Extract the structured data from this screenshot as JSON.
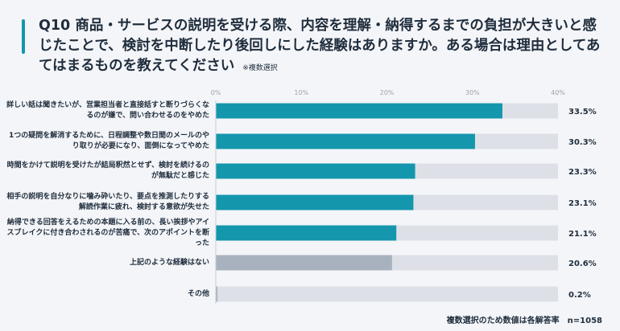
{
  "title": "Q10 商品・サービスの説明を受ける際、内容を理解・納得するまでの負担が大きいと感じたことで、検討を中断したり後回しにした経験はありますか。ある場合は理由としてあてはまるものを教えてください",
  "title_note": "※複数選択",
  "footnote": "複数選択のため数値は各解答率",
  "sample_size": "n=1058",
  "chart_data": {
    "type": "bar",
    "orientation": "horizontal",
    "categories": [
      "詳しい話は聞きたいが、営業担当者と直接話すと断りづらくなるのが嫌で、問い合わせるのをやめた",
      "1つの疑問を解消するために、日程調整や数日間のメールのやり取りが必要になり、面倒になってやめた",
      "時間をかけて説明を受けたが結局釈然とせず、検討を続けるのが無駄だと感じた",
      "相手の説明を自分なりに噛み砕いたり、要点を推測したりする解読作業に疲れ、検討する意欲が失せた",
      "納得できる回答をえるための本題に入る前の、長い挨拶やアイスブレイクに付き合わされるのが苦痛で、次のアポイントを断った",
      "上記のような経験はない",
      "その他"
    ],
    "values": [
      33.5,
      30.3,
      23.3,
      23.1,
      21.1,
      20.6,
      0.2
    ],
    "value_labels": [
      "33.5%",
      "30.3%",
      "23.3%",
      "23.1%",
      "21.1%",
      "20.6%",
      "0.2%"
    ],
    "xlim": [
      0,
      40
    ],
    "x_ticks": [
      "0%",
      "10%",
      "20%",
      "30%",
      "40%"
    ],
    "colors": {
      "primary": "#1496ad",
      "muted": "#a8b2bf",
      "track": "#dde1e7"
    },
    "muted_categories": [
      5,
      6
    ],
    "grid": false
  }
}
